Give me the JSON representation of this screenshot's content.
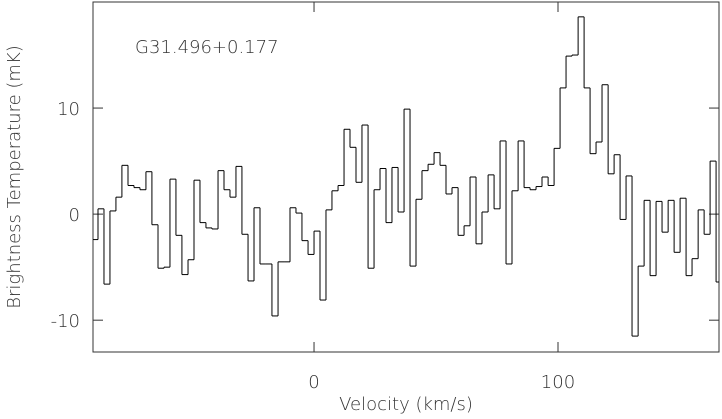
{
  "chart_data": {
    "type": "step",
    "annotation": "G31.496+0.177",
    "xlabel": "Velocity (km/s)",
    "ylabel": "Brightness Temperature (mK)",
    "color": "#000000",
    "xlim": [
      -90.6,
      166.0
    ],
    "ylim": [
      -13.0,
      20.0
    ],
    "xticks": [
      0,
      100
    ],
    "yticks": [
      -10,
      0,
      10
    ],
    "x": [
      -89.8,
      -87.3,
      -84.9,
      -82.4,
      -80.0,
      -77.5,
      -75.0,
      -72.6,
      -70.1,
      -67.7,
      -65.2,
      -62.7,
      -60.3,
      -57.8,
      -55.4,
      -52.9,
      -50.4,
      -48.0,
      -45.5,
      -43.1,
      -40.6,
      -38.1,
      -35.7,
      -33.2,
      -30.8,
      -28.3,
      -25.8,
      -23.4,
      -20.9,
      -18.5,
      -16.0,
      -13.5,
      -11.1,
      -8.6,
      -6.2,
      -3.7,
      -1.2,
      1.2,
      3.7,
      6.1,
      8.6,
      11.1,
      13.5,
      16.0,
      18.4,
      20.9,
      23.4,
      25.8,
      28.3,
      30.7,
      33.2,
      35.7,
      38.1,
      40.6,
      43.0,
      45.5,
      48.0,
      50.4,
      52.9,
      55.3,
      57.8,
      60.3,
      62.7,
      65.2,
      67.6,
      70.1,
      72.6,
      75.0,
      77.5,
      79.9,
      82.4,
      84.9,
      87.3,
      89.8,
      92.2,
      94.7,
      97.2,
      99.6,
      102.1,
      104.5,
      107.0,
      109.5,
      111.9,
      114.4,
      116.8,
      119.3,
      121.8,
      124.2,
      126.7,
      129.1,
      131.6,
      134.1,
      136.5,
      139.0,
      141.4,
      143.9,
      146.4,
      148.8,
      151.3,
      153.7,
      156.2,
      158.7,
      161.1,
      163.6,
      166.0
    ],
    "values": [
      -2.4,
      0.5,
      -6.6,
      0.3,
      1.6,
      4.6,
      2.7,
      2.5,
      2.3,
      4.0,
      -1.0,
      -5.1,
      -5.0,
      3.3,
      -2.0,
      -5.7,
      -4.3,
      3.2,
      -0.8,
      -1.3,
      -1.4,
      4.1,
      2.3,
      1.6,
      4.5,
      -1.9,
      -6.3,
      0.6,
      -4.7,
      -4.7,
      -9.6,
      -4.5,
      -4.5,
      0.6,
      0.1,
      -2.5,
      -3.8,
      -1.6,
      -8.1,
      0.4,
      2.2,
      2.7,
      8.0,
      6.3,
      3.0,
      8.4,
      -5.1,
      2.3,
      4.3,
      -0.8,
      4.4,
      0.2,
      9.9,
      -4.9,
      1.4,
      4.1,
      4.7,
      5.8,
      4.6,
      1.9,
      2.5,
      -2.0,
      -1.1,
      3.5,
      -2.8,
      0.2,
      3.7,
      0.5,
      6.9,
      -4.7,
      2.2,
      6.9,
      2.5,
      2.3,
      2.6,
      3.5,
      2.7,
      6.2,
      11.9,
      14.9,
      15.0,
      18.6,
      11.9,
      5.7,
      6.8,
      12.2,
      3.8,
      5.6,
      -0.5,
      3.6,
      -11.5,
      -4.9,
      1.3,
      -5.8,
      1.2,
      -1.7,
      1.3,
      -3.6,
      1.5,
      -5.8,
      -4.2,
      0.4,
      -1.9,
      5.0,
      -6.4
    ]
  }
}
